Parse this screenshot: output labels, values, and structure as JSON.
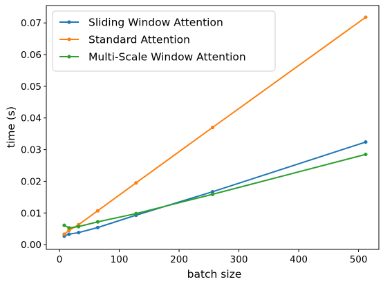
{
  "chart_data": {
    "type": "line",
    "xlabel": "batch size",
    "ylabel": "time (s)",
    "xlim": [
      -22,
      534
    ],
    "ylim": [
      -0.0015,
      0.0755
    ],
    "xticks": [
      0,
      100,
      200,
      300,
      400,
      500
    ],
    "xtick_labels": [
      "0",
      "100",
      "200",
      "300",
      "400",
      "500"
    ],
    "yticks": [
      0.0,
      0.01,
      0.02,
      0.03,
      0.04,
      0.05,
      0.06,
      0.07
    ],
    "ytick_labels": [
      "0.00",
      "0.01",
      "0.02",
      "0.03",
      "0.04",
      "0.05",
      "0.06",
      "0.07"
    ],
    "grid": false,
    "legend_position": "top-left",
    "x": [
      8,
      16,
      32,
      64,
      128,
      256,
      512
    ],
    "series": [
      {
        "name": "Sliding Window Attention",
        "color": "#1f77b4",
        "values": [
          0.0027,
          0.0033,
          0.0038,
          0.0054,
          0.0093,
          0.0167,
          0.0324
        ]
      },
      {
        "name": "Standard Attention",
        "color": "#ff7f0e",
        "values": [
          0.0033,
          0.0045,
          0.0063,
          0.0107,
          0.0195,
          0.037,
          0.0718
        ]
      },
      {
        "name": "Multi-Scale Window Attention",
        "color": "#2ca02c",
        "values": [
          0.0061,
          0.0053,
          0.0057,
          0.0072,
          0.0098,
          0.0159,
          0.0285
        ]
      }
    ]
  }
}
